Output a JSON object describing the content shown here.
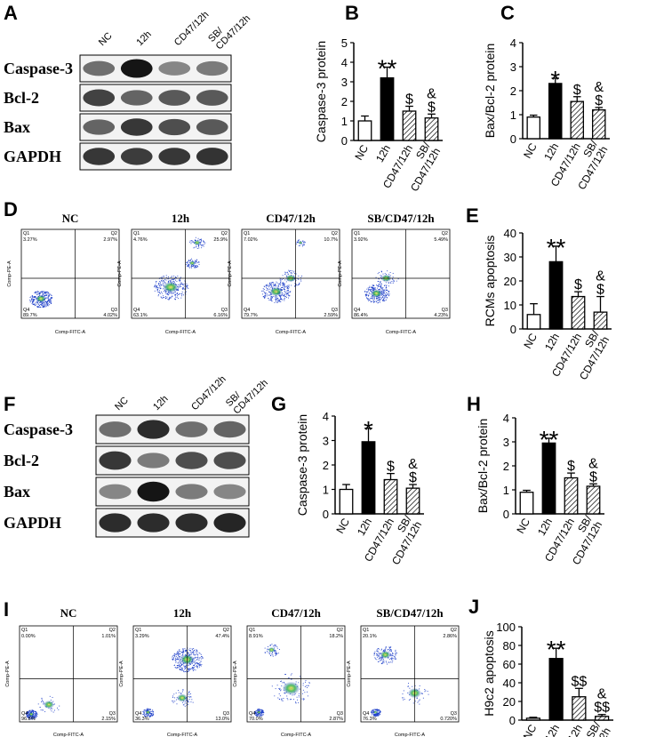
{
  "panel_letters": [
    "A",
    "B",
    "C",
    "D",
    "E",
    "F",
    "G",
    "H",
    "I",
    "J"
  ],
  "group_names": [
    "NC",
    "12h",
    "CD47/12h",
    "SB/CD47/12h"
  ],
  "western_blots": {
    "A": {
      "columns": [
        "NC",
        "12h",
        "CD47/12h",
        "SB/\nCD47/12h"
      ],
      "rows": [
        "Caspase-3",
        "Bcl-2",
        "Bax",
        "GAPDH"
      ],
      "intensity": [
        [
          0.55,
          0.95,
          0.45,
          0.5
        ],
        [
          0.75,
          0.6,
          0.65,
          0.65
        ],
        [
          0.6,
          0.8,
          0.7,
          0.65
        ],
        [
          0.8,
          0.78,
          0.8,
          0.82
        ]
      ]
    },
    "F": {
      "columns": [
        "NC",
        "12h",
        "CD47/12h",
        "SB/\nCD47/12h"
      ],
      "rows": [
        "Caspase-3",
        "Bcl-2",
        "Bax",
        "GAPDH"
      ],
      "intensity": [
        [
          0.55,
          0.85,
          0.55,
          0.6
        ],
        [
          0.8,
          0.5,
          0.7,
          0.7
        ],
        [
          0.45,
          0.95,
          0.5,
          0.45
        ],
        [
          0.85,
          0.85,
          0.85,
          0.88
        ]
      ]
    }
  },
  "flow_cytometry": {
    "D": {
      "titles": [
        "NC",
        "12h",
        "CD47/12h",
        "SB/CD47/12h"
      ],
      "quadrants": [
        {
          "Q1": "3.27%",
          "Q2": "2.97%",
          "Q3": "4.02%",
          "Q4": "89.7%"
        },
        {
          "Q1": "4.76%",
          "Q2": "25.9%",
          "Q3": "6.16%",
          "Q4": "63.1%"
        },
        {
          "Q1": "7.02%",
          "Q2": "10.7%",
          "Q3": "2.59%",
          "Q4": "79.7%"
        },
        {
          "Q1": "3.92%",
          "Q2": "5.49%",
          "Q3": "4.23%",
          "Q4": "86.4%"
        }
      ],
      "x_axis": "Comp-FITC-A",
      "y_axis": "Comp-PE-A"
    },
    "I": {
      "titles": [
        "NC",
        "12h",
        "CD47/12h",
        "SB/CD47/12h"
      ],
      "quadrants": [
        {
          "Q1": "0.00%",
          "Q2": "1.01%",
          "Q3": "2.15%",
          "Q4": "96.8%"
        },
        {
          "Q1": "3.29%",
          "Q2": "47.4%",
          "Q3": "13.0%",
          "Q4": "36.3%"
        },
        {
          "Q1": "8.91%",
          "Q2": "18.2%",
          "Q3": "2.87%",
          "Q4": "70.0%"
        },
        {
          "Q1": "20.1%",
          "Q2": "2.86%",
          "Q3": "0.720%",
          "Q4": "76.3%"
        }
      ],
      "x_axis": "Comp-FITC-A",
      "y_axis": "Comp-PE-A"
    }
  },
  "chart_data": [
    {
      "panel": "B",
      "type": "bar",
      "categories": [
        "NC",
        "12h",
        "CD47/12h",
        "SB/\nCD47/12h"
      ],
      "values": [
        1.0,
        3.2,
        1.5,
        1.15
      ],
      "errors": [
        0.25,
        0.55,
        0.25,
        0.2
      ],
      "ylabel": "Caspase-3 protein",
      "ylim": [
        0,
        5
      ],
      "yticks": [
        0,
        1,
        2,
        3,
        4,
        5
      ],
      "annotations": [
        "",
        "**",
        "$",
        "&\n$"
      ]
    },
    {
      "panel": "C",
      "type": "bar",
      "categories": [
        "NC",
        "12h",
        "CD47/12h",
        "SB/\nCD47/12h"
      ],
      "values": [
        0.9,
        2.3,
        1.55,
        1.2
      ],
      "errors": [
        0.08,
        0.22,
        0.2,
        0.1
      ],
      "ylabel": "Bax/Bcl-2 protein",
      "ylim": [
        0,
        4
      ],
      "yticks": [
        0,
        1,
        2,
        3,
        4
      ],
      "annotations": [
        "",
        "*",
        "$",
        "&\n$"
      ]
    },
    {
      "panel": "E",
      "type": "bar",
      "categories": [
        "NC",
        "12h",
        "CD47/12h",
        "SB/\nCD47/12h"
      ],
      "values": [
        6,
        28,
        13.5,
        7
      ],
      "errors": [
        4.5,
        6.5,
        2,
        6.5
      ],
      "ylabel": "RCMs apoptosis",
      "ylim": [
        0,
        40
      ],
      "yticks": [
        0,
        10,
        20,
        30,
        40
      ],
      "annotations": [
        "",
        "**",
        "$",
        "&\n$"
      ]
    },
    {
      "panel": "G",
      "type": "bar",
      "categories": [
        "NC",
        "12h",
        "CD47/12h",
        "SB/\nCD47/12h"
      ],
      "values": [
        1.0,
        2.95,
        1.4,
        1.05
      ],
      "errors": [
        0.2,
        0.55,
        0.25,
        0.15
      ],
      "ylabel": "Caspase-3 protein",
      "ylim": [
        0,
        4
      ],
      "yticks": [
        0,
        1,
        2,
        3,
        4
      ],
      "annotations": [
        "",
        "*",
        "$",
        "&\n$"
      ]
    },
    {
      "panel": "H",
      "type": "bar",
      "categories": [
        "NC",
        "12h",
        "CD47/12h",
        "SB/\nCD47/12h"
      ],
      "values": [
        0.9,
        2.95,
        1.5,
        1.15
      ],
      "errors": [
        0.08,
        0.2,
        0.2,
        0.1
      ],
      "ylabel": "Bax/Bcl-2 protein",
      "ylim": [
        0,
        4
      ],
      "yticks": [
        0,
        1,
        2,
        3,
        4
      ],
      "annotations": [
        "",
        "**",
        "$",
        "&\n$"
      ]
    },
    {
      "panel": "J",
      "type": "bar",
      "categories": [
        "NC",
        "12h",
        "CD47/12h",
        "SB/\nCD47/12h"
      ],
      "values": [
        2,
        66,
        25,
        4
      ],
      "errors": [
        1,
        11,
        9,
        2
      ],
      "ylabel": "H9c2 apoptosis",
      "ylim": [
        0,
        100
      ],
      "yticks": [
        0,
        20,
        40,
        60,
        80,
        100
      ],
      "annotations": [
        "",
        "**",
        "$$",
        "&\n$$"
      ]
    }
  ],
  "colors": {
    "nc": "#ffffff",
    "h12": "#000000",
    "hatch": "#000000",
    "dots": "#1a3cc8",
    "dense": "#17a84a"
  }
}
